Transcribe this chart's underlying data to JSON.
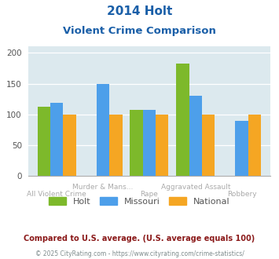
{
  "title_line1": "2014 Holt",
  "title_line2": "Violent Crime Comparison",
  "categories": [
    "All Violent Crime",
    "Murder & Mans...",
    "Rape",
    "Aggravated Assault",
    "Robbery"
  ],
  "holt": [
    113,
    0,
    108,
    183,
    0
  ],
  "missouri": [
    119,
    150,
    107,
    130,
    90
  ],
  "national": [
    100,
    100,
    100,
    100,
    100
  ],
  "holt_color": "#7db92b",
  "missouri_color": "#4d9fea",
  "national_color": "#f5a623",
  "bg_color": "#dce9ee",
  "title_color": "#1a5fa8",
  "ylim": [
    0,
    210
  ],
  "yticks": [
    0,
    50,
    100,
    150,
    200
  ],
  "legend_labels": [
    "Holt",
    "Missouri",
    "National"
  ],
  "footnote1": "Compared to U.S. average. (U.S. average equals 100)",
  "footnote2": "© 2025 CityRating.com - https://www.cityrating.com/crime-statistics/",
  "footnote1_color": "#8b1a1a",
  "footnote2_color": "#7f8c8d",
  "link_color": "#4d9fea"
}
